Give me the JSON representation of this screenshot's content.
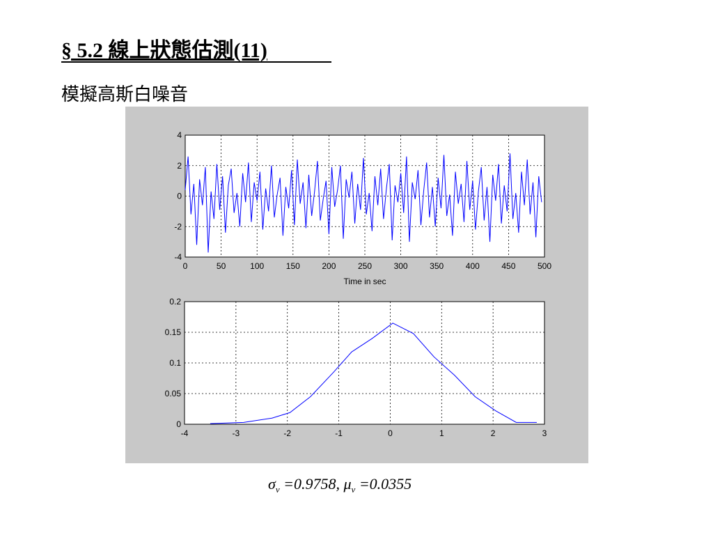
{
  "title": "§ 5.2 線上狀態估測(11)",
  "subtitle": "模擬高斯白噪音",
  "caption": [
    "σ",
    "v",
    " =0.9758, ",
    "μ",
    "v",
    " =0.0355"
  ],
  "chart_data": [
    {
      "type": "line",
      "xlabel": "Time in sec",
      "color": "#0000ff",
      "grid": true,
      "xlim": [
        0,
        500
      ],
      "ylim": [
        -4,
        4
      ],
      "xticks": [
        0,
        50,
        100,
        150,
        200,
        250,
        300,
        350,
        400,
        450,
        500
      ],
      "yticks": [
        -4,
        -2,
        0,
        2,
        4
      ],
      "x": [
        0,
        4,
        8,
        12,
        16,
        20,
        24,
        28,
        32,
        36,
        40,
        44,
        48,
        52,
        56,
        60,
        64,
        68,
        72,
        76,
        80,
        84,
        88,
        92,
        96,
        100,
        104,
        108,
        112,
        116,
        120,
        124,
        128,
        132,
        136,
        140,
        144,
        148,
        152,
        156,
        160,
        164,
        168,
        172,
        176,
        180,
        184,
        188,
        192,
        196,
        200,
        204,
        208,
        212,
        216,
        220,
        224,
        228,
        232,
        236,
        240,
        244,
        248,
        252,
        256,
        260,
        264,
        268,
        272,
        276,
        280,
        284,
        288,
        292,
        296,
        300,
        304,
        308,
        312,
        316,
        320,
        324,
        328,
        332,
        336,
        340,
        344,
        348,
        352,
        356,
        360,
        364,
        368,
        372,
        376,
        380,
        384,
        388,
        392,
        396,
        400,
        404,
        408,
        412,
        416,
        420,
        424,
        428,
        432,
        436,
        440,
        444,
        448,
        452,
        456,
        460,
        464,
        468,
        472,
        476,
        480,
        484,
        488,
        492,
        496
      ],
      "values": [
        0.4,
        2.6,
        -1.2,
        0.8,
        -3.2,
        1.1,
        -0.6,
        1.9,
        -3.7,
        0.3,
        -1.5,
        2.1,
        -0.9,
        1.3,
        -2.4,
        0.7,
        1.8,
        -1.1,
        0.2,
        -2.0,
        1.5,
        -0.4,
        2.2,
        -1.7,
        0.9,
        -0.3,
        1.6,
        -2.2,
        0.5,
        -1.0,
        2.0,
        -1.4,
        0.1,
        1.2,
        -2.6,
        0.6,
        -0.8,
        1.7,
        -1.9,
        2.4,
        -0.5,
        0.9,
        -2.1,
        1.4,
        -1.3,
        0.3,
        2.3,
        -1.6,
        -0.2,
        1.0,
        -2.5,
        1.9,
        -0.7,
        0.4,
        2.0,
        -2.8,
        1.1,
        -0.1,
        1.6,
        -1.8,
        0.8,
        -0.9,
        2.5,
        -1.2,
        0.2,
        -2.3,
        1.3,
        -0.6,
        1.8,
        -1.5,
        0.5,
        2.1,
        -2.9,
        0.7,
        -0.4,
        1.5,
        -1.1,
        2.6,
        -3.0,
        0.9,
        -0.2,
        1.7,
        -1.9,
        0.4,
        2.2,
        -1.4,
        0.6,
        -2.0,
        1.2,
        -0.8,
        2.7,
        -1.3,
        0.1,
        -2.6,
        1.6,
        -0.5,
        0.8,
        -1.7,
        2.3,
        -0.9,
        1.0,
        -2.2,
        0.3,
        1.9,
        -1.6,
        0.6,
        -3.0,
        1.4,
        -0.3,
        2.1,
        -1.8,
        0.7,
        -1.0,
        2.8,
        -1.5,
        0.2,
        -2.4,
        1.6,
        -0.6,
        2.4,
        -1.2,
        0.9,
        -2.7,
        1.3,
        -0.4
      ]
    },
    {
      "type": "line",
      "color": "#0000ff",
      "grid": true,
      "xlim": [
        -4,
        3
      ],
      "ylim": [
        0,
        0.2
      ],
      "xticks": [
        -4,
        -3,
        -2,
        -1,
        0,
        1,
        2,
        3
      ],
      "yticks": [
        0,
        0.05,
        0.1,
        0.15,
        0.2
      ],
      "x": [
        -3.5,
        -2.85,
        -2.3,
        -1.95,
        -1.55,
        -1.1,
        -0.75,
        -0.35,
        0.05,
        0.45,
        0.85,
        1.25,
        1.65,
        2.05,
        2.45,
        2.85
      ],
      "values": [
        0.001,
        0.003,
        0.01,
        0.019,
        0.045,
        0.085,
        0.118,
        0.14,
        0.165,
        0.148,
        0.11,
        0.08,
        0.045,
        0.022,
        0.003,
        0.003
      ]
    }
  ]
}
